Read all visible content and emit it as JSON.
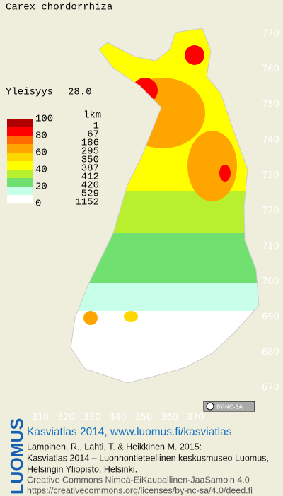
{
  "title": "Carex chordorrhiza",
  "frequency": {
    "label": "Yleisyys",
    "value": "28.0"
  },
  "legend": {
    "header": "lkm",
    "scale_labels": [
      "100",
      "80",
      "60",
      "40",
      "20",
      "0"
    ],
    "classes": [
      {
        "color": "#b00000",
        "count": "1"
      },
      {
        "color": "#ff0000",
        "count": "67"
      },
      {
        "color": "#ff6a00",
        "count": "186"
      },
      {
        "color": "#ffa500",
        "count": "295"
      },
      {
        "color": "#ffd700",
        "count": "350"
      },
      {
        "color": "#ffff00",
        "count": "387"
      },
      {
        "color": "#b8f030",
        "count": "412"
      },
      {
        "color": "#70e070",
        "count": "420"
      },
      {
        "color": "#c8ffe8",
        "count": "529"
      },
      {
        "color": "#ffffff",
        "count": "1152"
      }
    ]
  },
  "y_axis": {
    "ticks": [
      "770",
      "760",
      "750",
      "740",
      "730",
      "720",
      "710",
      "700",
      "690",
      "680",
      "670"
    ]
  },
  "x_axis": {
    "ticks": [
      "310",
      "320",
      "330",
      "340",
      "350",
      "360",
      "370"
    ]
  },
  "license_badge": "BY-NC-SA",
  "footer": {
    "logo": "LUOMUS",
    "headline": "Kasviatlas 2014, www.luomus.fi/kasviatlas",
    "citation": [
      "Lampinen, R., Lahti, T. & Heikkinen M. 2015:",
      "Kasviatlas 2014 – Luonnontieteellinen keskusmuseo Luomus,",
      "Helsingin Yliopisto, Helsinki."
    ],
    "license": [
      "Creative Commons Nimeä-EiKaupallinen-JaaSamoin 4.0",
      "https://creativecommons.org/licenses/by-nc-sa/4.0/deed.fi"
    ]
  }
}
